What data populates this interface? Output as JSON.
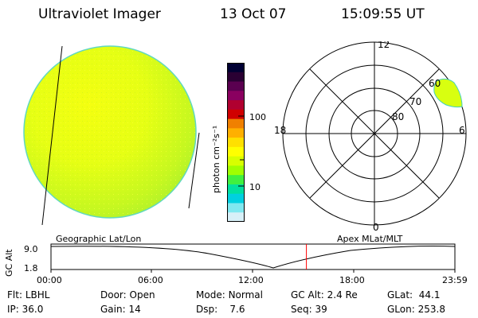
{
  "header": {
    "instrument": "Ultraviolet Imager",
    "date": "13 Oct 07",
    "time": "15:09:55 UT"
  },
  "colorbar": {
    "unit_label": "photon cm⁻²s⁻¹",
    "tick_labels": [
      "100",
      "10"
    ],
    "colors": [
      "#000033",
      "#2a0033",
      "#5a0050",
      "#8a0060",
      "#b00030",
      "#d00000",
      "#f08000",
      "#ffb000",
      "#ffe000",
      "#ffff00",
      "#d8ff00",
      "#a0ff00",
      "#40f040",
      "#00e0a0",
      "#00d0e0",
      "#80e8f0",
      "#d8f0f8"
    ]
  },
  "polar_plot": {
    "mlt_labels": [
      "12",
      "18",
      "6",
      "0"
    ],
    "mlat_labels": [
      "60",
      "70",
      "80"
    ]
  },
  "geo_label": "Geographic Lat/Lon",
  "apex_label": "Apex MLat/MLT",
  "altitude_strip": {
    "axis_title": "GC Alt",
    "y_ticks": [
      "9.0",
      "1.8"
    ],
    "time_ticks": [
      "00:00",
      "06:00",
      "12:00",
      "18:00",
      "23:59"
    ],
    "y_range": [
      1.8,
      9.0
    ],
    "current_time_marker": "15:09:55",
    "marker_color": "#ff0000"
  },
  "status": {
    "row1": [
      {
        "label": "Flt:",
        "value": "LBHL"
      },
      {
        "label": "Door:",
        "value": "Open"
      },
      {
        "label": "Mode:",
        "value": "Normal"
      },
      {
        "label": "GC Alt:",
        "value": "2.4 Re"
      },
      {
        "label": "GLat:",
        "value": "44.1"
      }
    ],
    "row2": [
      {
        "label": "IP:",
        "value": "36.0"
      },
      {
        "label": "Gain:",
        "value": "14"
      },
      {
        "label": "Dsp:",
        "value": "7.6"
      },
      {
        "label": "Seq:",
        "value": "39"
      },
      {
        "label": "GLon:",
        "value": "253.8"
      }
    ]
  }
}
